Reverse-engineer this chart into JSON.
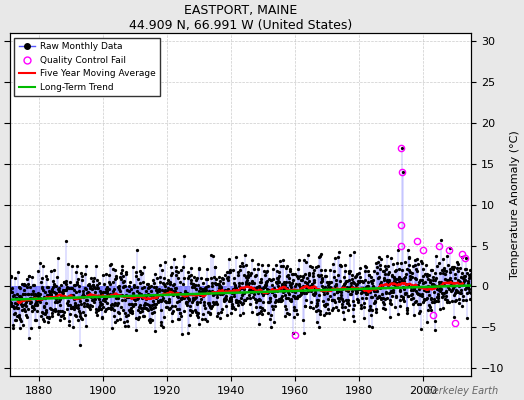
{
  "title": "EASTPORT, MAINE",
  "subtitle": "44.909 N, 66.991 W (United States)",
  "ylabel_right": "Temperature Anomaly (°C)",
  "watermark": "Berkeley Earth",
  "xlim": [
    1871,
    2015
  ],
  "ylim": [
    -11,
    31
  ],
  "yticks": [
    -10,
    -5,
    0,
    5,
    10,
    15,
    20,
    25,
    30
  ],
  "xticks": [
    1880,
    1900,
    1920,
    1940,
    1960,
    1980,
    2000
  ],
  "seed": 42,
  "start_year": 1871,
  "end_year": 2014,
  "background_color": "#e8e8e8",
  "plot_background": "#ffffff",
  "raw_line_color": "#5555ff",
  "raw_dot_color": "#000000",
  "qc_fail_color": "#ff00ff",
  "moving_avg_color": "#ff0000",
  "trend_color": "#00bb00",
  "trend_slope": 0.012,
  "trend_intercept": -0.8,
  "noise_std": 1.8,
  "qc_fail_points": [
    [
      1993,
      17.0
    ],
    [
      1993.5,
      14.0
    ],
    [
      1993.2,
      7.5
    ],
    [
      1993.1,
      5.0
    ],
    [
      1998,
      5.5
    ],
    [
      2000,
      4.5
    ],
    [
      2005,
      5.0
    ],
    [
      2008,
      4.5
    ],
    [
      2010,
      -4.5
    ],
    [
      1960,
      -6.0
    ],
    [
      2003,
      -3.5
    ],
    [
      2012,
      4.0
    ],
    [
      2013,
      3.5
    ]
  ],
  "spike_year": 1993,
  "spike_value": 17.0,
  "spike_value2": 14.0
}
